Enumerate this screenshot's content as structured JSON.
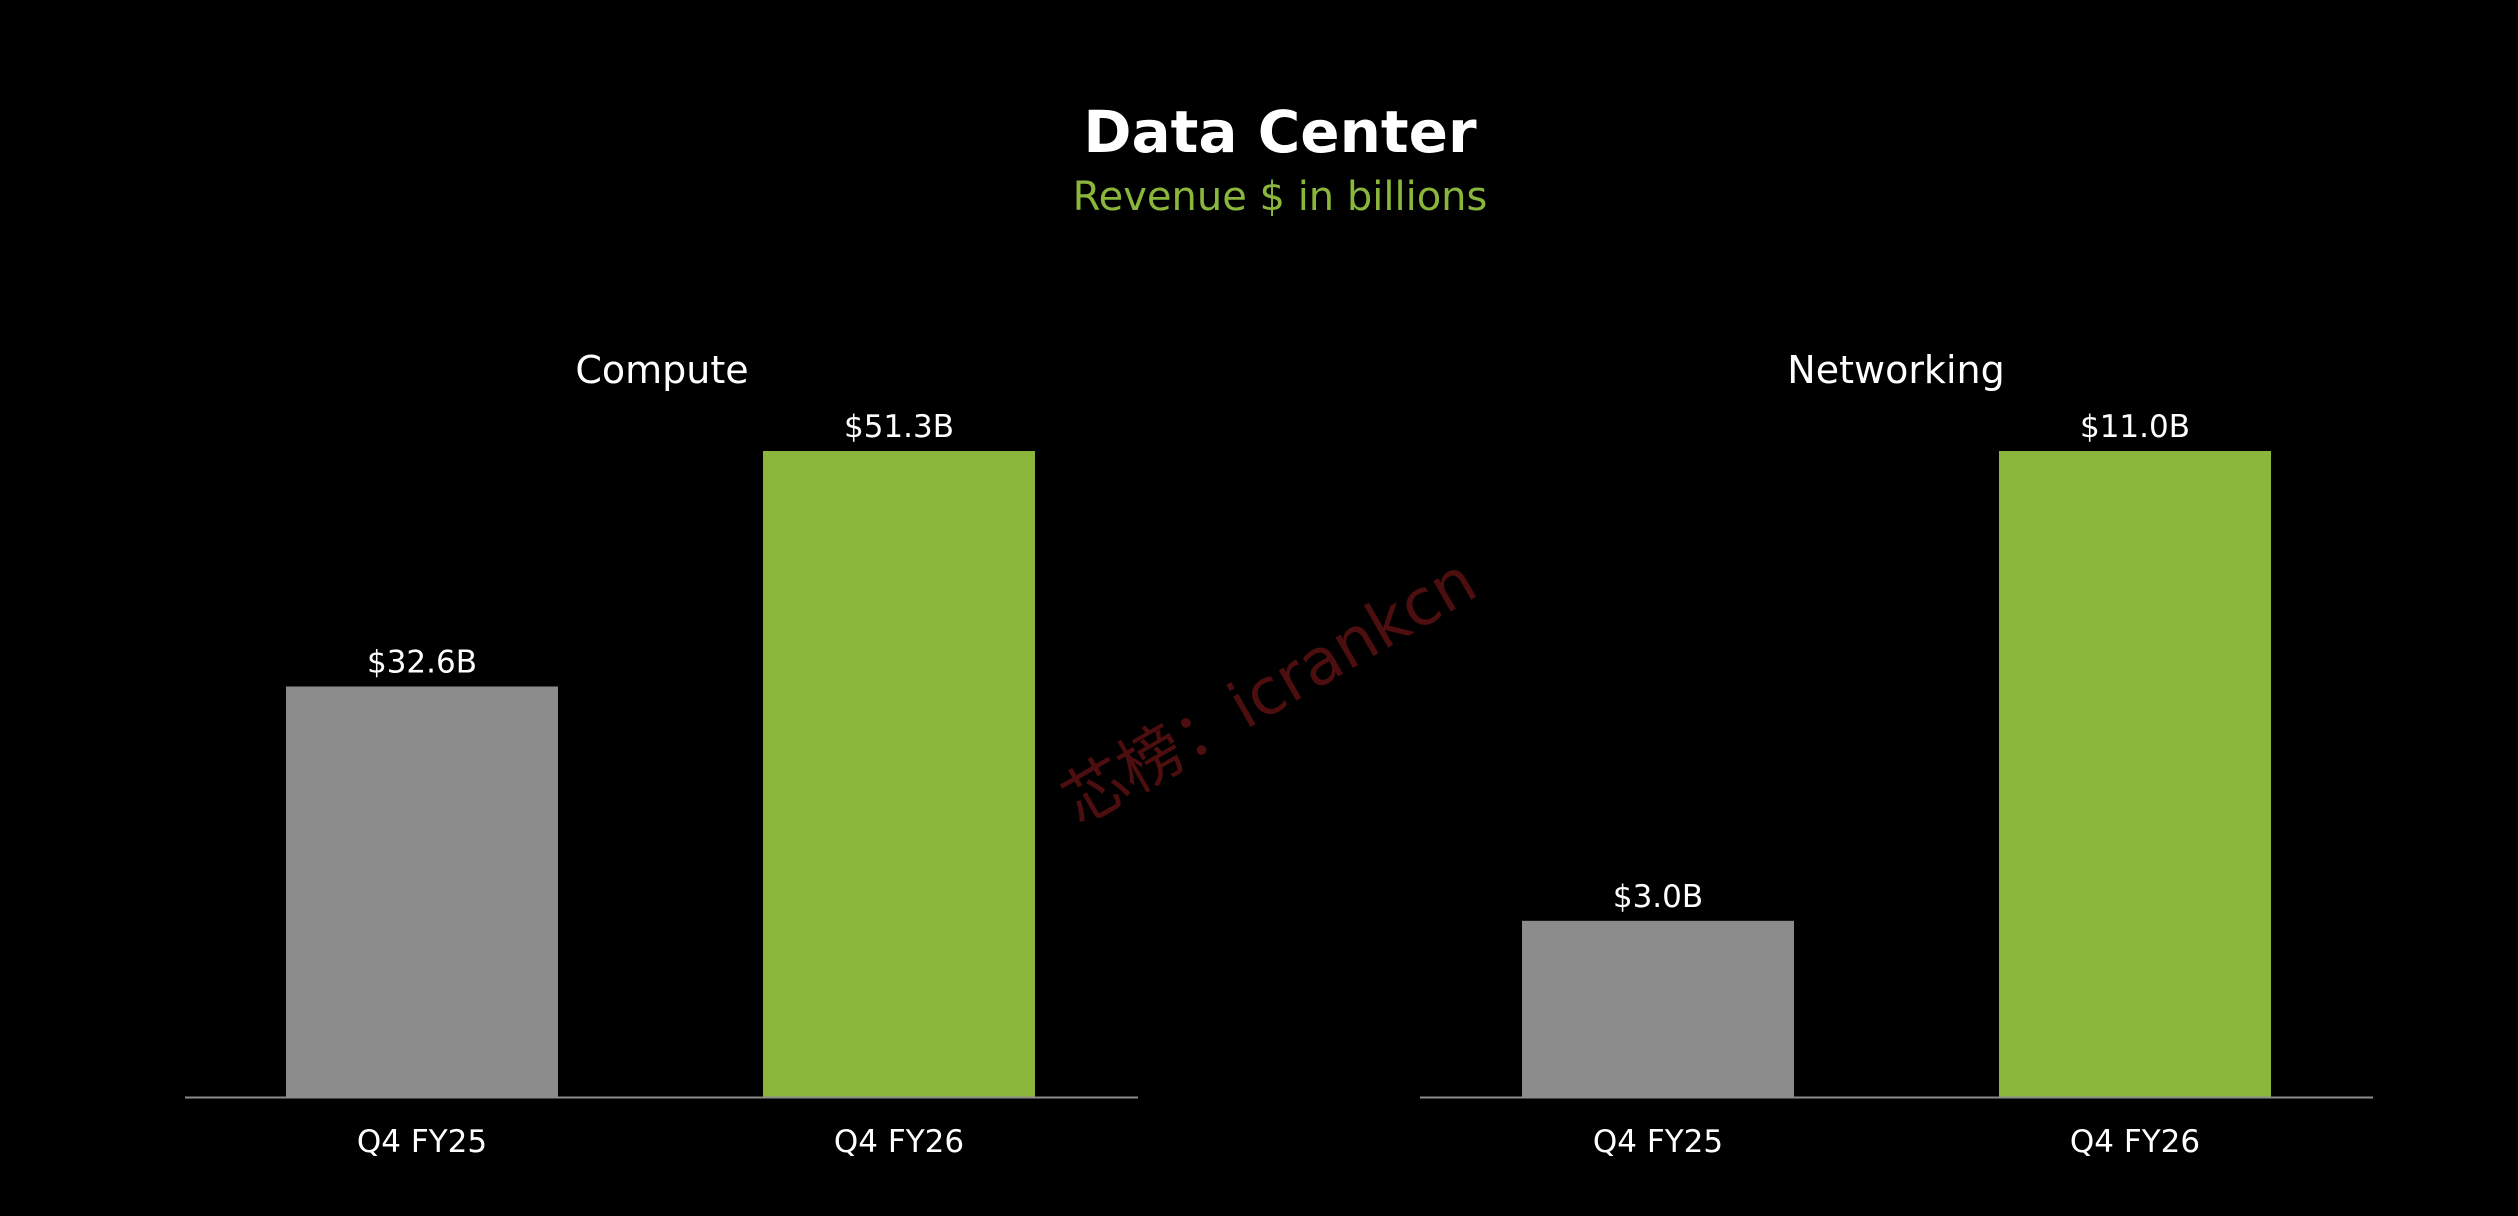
{
  "title": "Data Center",
  "subtitle": "Revenue $ in billions",
  "watermark": "芯榜：icrankcn",
  "colors": {
    "background": "#000000",
    "prior_year": "#8c8c8c",
    "current_year": "#8ab73b",
    "subtitle": "#8ab73b",
    "axis": "#8c8c8c"
  },
  "chart_data": [
    {
      "type": "bar",
      "title": "Compute",
      "categories": [
        "Q4 FY25",
        "Q4 FY26"
      ],
      "values": [
        32.6,
        51.3
      ],
      "labels": [
        "$32.6B",
        "$51.3B"
      ],
      "ylim": [
        0,
        51.3
      ],
      "grid": false
    },
    {
      "type": "bar",
      "title": "Networking",
      "categories": [
        "Q4 FY25",
        "Q4 FY26"
      ],
      "values": [
        3.0,
        11.0
      ],
      "labels": [
        "$3.0B",
        "$11.0B"
      ],
      "ylim": [
        0,
        11.0
      ],
      "grid": false
    }
  ]
}
